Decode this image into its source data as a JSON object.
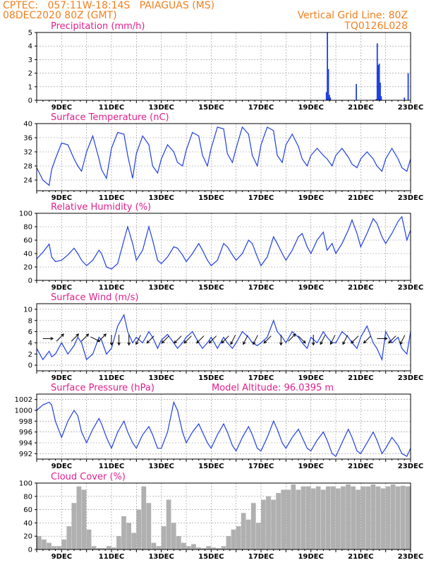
{
  "header": {
    "line1_left": "CPTEC:   057:11W-18:14S   PAIAGUAS (MS)",
    "line2_left": "08DEC2020 80Z (GMT)",
    "line2_right": "Vertical Grid Line: 80Z",
    "line3_right": "TQ0126L028"
  },
  "colors": {
    "header": "#f08020",
    "title": "#e0208c",
    "series": "#2040e0",
    "cloud": "#b0b0b0",
    "grid": "#909090"
  },
  "chart_data": [
    {
      "type": "bar",
      "title": "Precipitation (mm/h)",
      "xrange_days": [
        8,
        23
      ],
      "x_ticks": [
        "9DEC",
        "11DEC",
        "13DEC",
        "15DEC",
        "17DEC",
        "19DEC",
        "21DEC",
        "23DEC"
      ],
      "ylim": [
        0,
        5
      ],
      "y_ticks": [
        0,
        1,
        2,
        3,
        4,
        5
      ],
      "x": [
        19.62,
        19.66,
        19.7,
        19.74,
        19.78,
        20.82,
        21.62,
        21.66,
        21.7,
        21.74,
        21.78,
        21.82,
        22.75,
        22.9
      ],
      "values": [
        0.6,
        5.0,
        2.3,
        0.4,
        0.2,
        1.2,
        0.1,
        4.2,
        2.6,
        2.7,
        1.3,
        0.3,
        0.2,
        2.0
      ]
    },
    {
      "type": "line",
      "title": "Surface Temperature (nC)",
      "xrange_days": [
        8,
        23
      ],
      "x_ticks": [
        "9DEC",
        "11DEC",
        "13DEC",
        "15DEC",
        "17DEC",
        "19DEC",
        "21DEC",
        "23DEC"
      ],
      "ylim": [
        21,
        40
      ],
      "y_ticks": [
        24,
        28,
        32,
        36,
        40
      ],
      "x": [
        8.0,
        8.25,
        8.5,
        8.6,
        8.75,
        9.0,
        9.25,
        9.5,
        9.65,
        9.8,
        10.0,
        10.25,
        10.5,
        10.6,
        10.8,
        11.0,
        11.25,
        11.5,
        11.65,
        11.85,
        12.0,
        12.25,
        12.5,
        12.65,
        12.85,
        13.0,
        13.25,
        13.5,
        13.65,
        13.85,
        14.0,
        14.25,
        14.5,
        14.65,
        14.85,
        15.0,
        15.25,
        15.5,
        15.65,
        15.85,
        16.0,
        16.25,
        16.5,
        16.65,
        16.85,
        17.0,
        17.25,
        17.5,
        17.65,
        17.85,
        18.0,
        18.25,
        18.5,
        18.65,
        18.85,
        19.0,
        19.25,
        19.5,
        19.65,
        19.85,
        20.0,
        20.25,
        20.5,
        20.65,
        20.85,
        21.0,
        21.25,
        21.5,
        21.65,
        21.85,
        22.0,
        22.25,
        22.5,
        22.65,
        22.85,
        23.0
      ],
      "values": [
        27.5,
        24,
        22.5,
        27,
        30,
        34.5,
        34,
        30,
        28,
        26.5,
        32,
        36.5,
        30,
        27,
        24.5,
        33,
        37.5,
        37,
        31,
        24.5,
        31.5,
        36.5,
        34,
        28,
        26,
        30,
        34,
        32,
        29,
        28,
        32.5,
        37.5,
        36.5,
        31,
        28,
        33,
        39,
        38.5,
        31.5,
        29,
        33,
        39,
        37,
        31,
        28,
        34,
        39,
        38,
        31,
        29,
        34,
        37,
        33.5,
        30,
        28,
        31,
        33,
        31,
        30,
        28,
        31,
        33,
        30.5,
        28.5,
        27.5,
        30,
        32,
        30,
        28,
        26.5,
        30,
        33,
        30,
        27.5,
        26.5,
        30
      ]
    },
    {
      "type": "line",
      "title": "Relative Humidity (%)",
      "xrange_days": [
        8,
        23
      ],
      "x_ticks": [
        "9DEC",
        "11DEC",
        "13DEC",
        "15DEC",
        "17DEC",
        "19DEC",
        "21DEC",
        "23DEC"
      ],
      "ylim": [
        0,
        100
      ],
      "y_ticks": [
        0,
        20,
        40,
        60,
        80,
        100
      ],
      "x": [
        8.0,
        8.25,
        8.5,
        8.6,
        8.75,
        9.0,
        9.25,
        9.5,
        9.65,
        9.8,
        10.0,
        10.25,
        10.5,
        10.6,
        10.8,
        11.0,
        11.25,
        11.5,
        11.65,
        11.85,
        12.0,
        12.25,
        12.5,
        12.65,
        12.85,
        13.0,
        13.25,
        13.5,
        13.65,
        13.85,
        14.0,
        14.25,
        14.5,
        14.65,
        14.85,
        15.0,
        15.25,
        15.5,
        15.65,
        15.85,
        16.0,
        16.25,
        16.5,
        16.65,
        16.85,
        17.0,
        17.25,
        17.5,
        17.65,
        17.85,
        18.0,
        18.25,
        18.5,
        18.65,
        18.85,
        19.0,
        19.25,
        19.5,
        19.65,
        19.85,
        20.0,
        20.25,
        20.5,
        20.65,
        20.85,
        21.0,
        21.25,
        21.5,
        21.65,
        21.85,
        22.0,
        22.25,
        22.5,
        22.65,
        22.85,
        23.0
      ],
      "values": [
        32,
        42,
        54,
        35,
        28,
        30,
        38,
        48,
        40,
        30,
        22,
        30,
        45,
        40,
        20,
        17,
        25,
        60,
        80,
        55,
        30,
        45,
        80,
        60,
        30,
        25,
        35,
        50,
        48,
        38,
        28,
        40,
        55,
        45,
        30,
        22,
        30,
        55,
        50,
        38,
        30,
        40,
        60,
        55,
        35,
        22,
        35,
        65,
        55,
        40,
        30,
        45,
        65,
        70,
        50,
        40,
        60,
        72,
        45,
        55,
        40,
        55,
        75,
        90,
        70,
        50,
        70,
        92,
        85,
        65,
        55,
        70,
        88,
        95,
        60,
        75
      ]
    },
    {
      "type": "line",
      "title": "Surface Wind (m/s)",
      "xrange_days": [
        8,
        23
      ],
      "x_ticks": [
        "9DEC",
        "11DEC",
        "13DEC",
        "15DEC",
        "17DEC",
        "19DEC",
        "21DEC",
        "23DEC"
      ],
      "ylim": [
        -1,
        11
      ],
      "y_ticks": [
        0,
        2,
        4,
        6,
        8,
        10
      ],
      "x": [
        8.0,
        8.25,
        8.5,
        8.6,
        8.75,
        9.0,
        9.25,
        9.5,
        9.65,
        9.8,
        10.0,
        10.25,
        10.5,
        10.6,
        10.8,
        11.0,
        11.25,
        11.5,
        11.65,
        11.85,
        12.0,
        12.25,
        12.5,
        12.65,
        12.85,
        13.0,
        13.25,
        13.5,
        13.65,
        13.85,
        14.0,
        14.25,
        14.5,
        14.65,
        14.85,
        15.0,
        15.25,
        15.5,
        15.65,
        15.85,
        16.0,
        16.25,
        16.5,
        16.65,
        16.85,
        17.0,
        17.25,
        17.5,
        17.65,
        17.85,
        18.0,
        18.25,
        18.5,
        18.65,
        18.85,
        19.0,
        19.25,
        19.5,
        19.65,
        19.85,
        20.0,
        20.25,
        20.5,
        20.65,
        20.85,
        21.0,
        21.25,
        21.5,
        21.65,
        21.85,
        22.0,
        22.25,
        22.5,
        22.65,
        22.85,
        23.0
      ],
      "values": [
        3,
        1,
        2.5,
        1.5,
        2,
        4,
        2,
        3.5,
        5,
        4,
        1,
        2,
        5,
        4.5,
        2,
        3,
        7,
        9,
        6,
        4,
        5,
        4,
        6,
        5,
        3,
        4.5,
        5.5,
        4,
        3,
        4,
        5,
        6,
        4,
        3,
        4,
        5,
        3,
        5,
        4,
        3,
        4,
        6,
        5,
        4,
        3.5,
        4,
        5,
        8,
        6,
        5,
        4,
        6,
        5,
        4,
        3,
        5,
        4,
        6,
        5,
        4,
        4,
        6,
        5,
        4,
        3,
        5,
        7,
        4,
        3,
        1,
        6,
        4,
        5,
        3,
        2,
        6
      ]
    },
    {
      "type": "line",
      "title": "Surface Pressure (hPa)",
      "annotation": "Model Altitude: 96.0395 m",
      "xrange_days": [
        8,
        23
      ],
      "x_ticks": [
        "9DEC",
        "11DEC",
        "13DEC",
        "15DEC",
        "17DEC",
        "19DEC",
        "21DEC",
        "23DEC"
      ],
      "ylim": [
        991,
        1003
      ],
      "y_ticks": [
        992,
        994,
        996,
        998,
        1000,
        1002
      ],
      "x": [
        8.0,
        8.25,
        8.5,
        8.6,
        8.75,
        9.0,
        9.25,
        9.5,
        9.65,
        9.8,
        10.0,
        10.25,
        10.5,
        10.6,
        10.8,
        11.0,
        11.25,
        11.5,
        11.65,
        11.85,
        12.0,
        12.25,
        12.5,
        12.65,
        12.85,
        13.0,
        13.25,
        13.5,
        13.65,
        13.85,
        14.0,
        14.25,
        14.5,
        14.65,
        14.85,
        15.0,
        15.25,
        15.5,
        15.65,
        15.85,
        16.0,
        16.25,
        16.5,
        16.65,
        16.85,
        17.0,
        17.25,
        17.5,
        17.65,
        17.85,
        18.0,
        18.25,
        18.5,
        18.65,
        18.85,
        19.0,
        19.25,
        19.5,
        19.65,
        19.85,
        20.0,
        20.25,
        20.5,
        20.65,
        20.85,
        21.0,
        21.25,
        21.5,
        21.65,
        21.85,
        22.0,
        22.25,
        22.5,
        22.65,
        22.85,
        23.0
      ],
      "values": [
        1000,
        1001,
        1001.5,
        1001,
        998,
        995,
        998,
        1000,
        999,
        996,
        994,
        996.5,
        998.5,
        997.5,
        995,
        993,
        996,
        998,
        996,
        994,
        993,
        995.5,
        997,
        995.5,
        993,
        993,
        996,
        1001.5,
        1000,
        996,
        994,
        996,
        997.5,
        996,
        994,
        993,
        995.5,
        997.5,
        996,
        993.5,
        992.5,
        995,
        997,
        995.5,
        993,
        992.5,
        995,
        998,
        996.5,
        994,
        993,
        995,
        996.5,
        995,
        993,
        992.5,
        994.5,
        996,
        994.5,
        992,
        991.5,
        994,
        996.5,
        995,
        992.5,
        992,
        994,
        996,
        994.5,
        992,
        993,
        995,
        993.5,
        992,
        991.5,
        993
      ]
    },
    {
      "type": "bar",
      "title": "Cloud Cover (%)",
      "xrange_days": [
        8,
        23
      ],
      "x_ticks": [
        "9DEC",
        "11DEC",
        "13DEC",
        "15DEC",
        "17DEC",
        "19DEC",
        "21DEC",
        "23DEC"
      ],
      "ylim": [
        0,
        100
      ],
      "y_ticks": [
        0,
        20,
        40,
        60,
        80,
        100
      ],
      "x": [
        8.0,
        8.2,
        8.4,
        8.6,
        8.8,
        9.0,
        9.2,
        9.4,
        9.6,
        9.8,
        10.0,
        10.2,
        10.4,
        10.6,
        10.8,
        11.0,
        11.2,
        11.4,
        11.6,
        11.8,
        12.0,
        12.2,
        12.4,
        12.6,
        12.8,
        13.0,
        13.2,
        13.4,
        13.6,
        13.8,
        14.0,
        14.2,
        14.4,
        14.6,
        14.8,
        15.0,
        15.2,
        15.4,
        15.6,
        15.8,
        16.0,
        16.2,
        16.4,
        16.6,
        16.8,
        17.0,
        17.2,
        17.4,
        17.6,
        17.8,
        18.0,
        18.2,
        18.4,
        18.6,
        18.8,
        19.0,
        19.2,
        19.4,
        19.6,
        19.8,
        20.0,
        20.2,
        20.4,
        20.6,
        20.8,
        21.0,
        21.2,
        21.4,
        21.6,
        21.8,
        22.0,
        22.2,
        22.4,
        22.6,
        22.8
      ],
      "values": [
        20,
        15,
        10,
        5,
        5,
        15,
        35,
        70,
        95,
        90,
        30,
        5,
        2,
        2,
        5,
        3,
        20,
        50,
        40,
        25,
        60,
        95,
        70,
        10,
        5,
        35,
        75,
        40,
        20,
        10,
        5,
        8,
        3,
        2,
        5,
        3,
        2,
        5,
        20,
        30,
        35,
        55,
        45,
        70,
        40,
        75,
        80,
        75,
        85,
        90,
        90,
        98,
        90,
        95,
        95,
        92,
        95,
        90,
        95,
        95,
        92,
        95,
        98,
        95,
        90,
        95,
        95,
        98,
        95,
        92,
        95,
        98,
        95,
        96,
        95
      ]
    }
  ],
  "wind_arrows": {
    "x": [
      8.4,
      8.9,
      9.5,
      9.9,
      10.3,
      10.6,
      11.0,
      11.3,
      11.7,
      12.1,
      12.6,
      13.2,
      13.7,
      14.1,
      14.6,
      15.1,
      15.6,
      15.9,
      16.4,
      16.8,
      17.3,
      17.8,
      18.2,
      18.6,
      19.1,
      19.5,
      19.9,
      20.4,
      20.8,
      21.3,
      21.8,
      22.3,
      22.7
    ],
    "u": [
      1,
      1,
      1,
      1,
      2,
      1,
      0,
      0,
      0,
      -1,
      -1,
      -1,
      -1,
      -1,
      -1,
      -1,
      -1,
      -1,
      -1,
      -1,
      -1,
      0,
      1,
      1,
      0,
      -1,
      -1,
      -1,
      -1,
      -1,
      1,
      -1,
      -1
    ],
    "v": [
      0,
      1,
      1,
      1,
      -1,
      1,
      -1,
      -2,
      -2,
      -2,
      -1,
      -1,
      -1,
      -1,
      -1,
      -1,
      -1,
      -2,
      -2,
      -2,
      -1,
      -1,
      1,
      -1,
      -2,
      -2,
      -2,
      -2,
      -1,
      -1,
      0,
      -1,
      -2
    ]
  }
}
